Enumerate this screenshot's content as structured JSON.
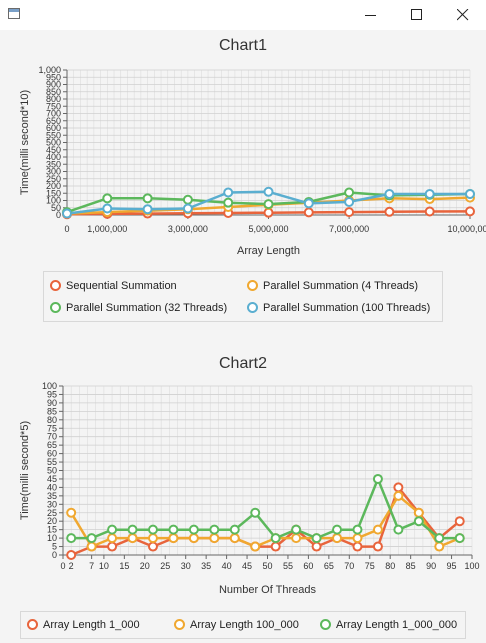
{
  "window": {
    "title": ""
  },
  "chart1": {
    "title": "Chart1",
    "ylabel": "Time(milli second*10)",
    "xlabel": "Array Length",
    "yticks": [
      "0",
      "50",
      "100",
      "150",
      "200",
      "250",
      "300",
      "350",
      "400",
      "450",
      "500",
      "550",
      "600",
      "650",
      "700",
      "750",
      "800",
      "850",
      "900",
      "950",
      "1,000"
    ],
    "xticks": [
      "0",
      "1,000,000",
      "3,000,000",
      "5,000,000",
      "7,000,000",
      "10,000,000"
    ],
    "legend": [
      "Sequential Summation",
      "Parallel Summation (4 Threads)",
      "Parallel Summation (32 Threads)",
      "Parallel Summation (100 Threads)"
    ]
  },
  "chart2": {
    "title": "Chart2",
    "ylabel": "Time(milli second*5)",
    "xlabel": "Number Of Threads",
    "yticks": [
      "0",
      "5",
      "10",
      "15",
      "20",
      "25",
      "30",
      "35",
      "40",
      "45",
      "50",
      "55",
      "60",
      "65",
      "70",
      "75",
      "80",
      "85",
      "90",
      "95",
      "100"
    ],
    "xticks": [
      "0",
      "2",
      "7",
      "10",
      "15",
      "20",
      "25",
      "30",
      "35",
      "40",
      "45",
      "50",
      "55",
      "60",
      "65",
      "70",
      "75",
      "80",
      "85",
      "90",
      "95",
      "100"
    ],
    "legend": [
      "Array Length 1_000",
      "Array Length 100_000",
      "Array Length 1_000_000"
    ]
  },
  "colors": {
    "orange": "#e8643c",
    "yellow": "#f0a830",
    "green": "#5cb85c",
    "blue": "#5aaed0"
  },
  "chart_data": [
    {
      "type": "line",
      "title": "Chart1",
      "xlabel": "Array Length",
      "ylabel": "Time(milli second*10)",
      "xlim": [
        0,
        10000000
      ],
      "ylim": [
        0,
        1000
      ],
      "grid": true,
      "legend_position": "bottom",
      "x": [
        0,
        1000000,
        2000000,
        3000000,
        4000000,
        5000000,
        6000000,
        7000000,
        8000000,
        9000000,
        10000000
      ],
      "series": [
        {
          "name": "Sequential Summation",
          "color": "#e8643c",
          "values": [
            5,
            8,
            10,
            12,
            14,
            16,
            18,
            20,
            22,
            24,
            25
          ]
        },
        {
          "name": "Parallel Summation (4 Threads)",
          "color": "#f0a830",
          "values": [
            10,
            20,
            30,
            40,
            55,
            70,
            85,
            100,
            115,
            110,
            120
          ]
        },
        {
          "name": "Parallel Summation (32 Threads)",
          "color": "#5cb85c",
          "values": [
            20,
            115,
            115,
            105,
            85,
            75,
            90,
            155,
            135,
            140,
            145
          ]
        },
        {
          "name": "Parallel Summation (100 Threads)",
          "color": "#5aaed0",
          "values": [
            10,
            45,
            40,
            45,
            155,
            160,
            80,
            90,
            145,
            145,
            145
          ]
        }
      ]
    },
    {
      "type": "line",
      "title": "Chart2",
      "xlabel": "Number Of Threads",
      "ylabel": "Time(milli second*5)",
      "xlim": [
        0,
        100
      ],
      "ylim": [
        0,
        100
      ],
      "grid": true,
      "legend_position": "bottom",
      "x": [
        2,
        7,
        12,
        17,
        22,
        27,
        32,
        37,
        42,
        47,
        52,
        57,
        62,
        67,
        72,
        77,
        82,
        87,
        92,
        97
      ],
      "series": [
        {
          "name": "Array Length 1_000",
          "color": "#e8643c",
          "values": [
            0,
            5,
            5,
            10,
            5,
            10,
            10,
            10,
            10,
            5,
            5,
            15,
            5,
            10,
            5,
            5,
            40,
            25,
            10,
            20
          ]
        },
        {
          "name": "Array Length 100_000",
          "color": "#f0a830",
          "values": [
            25,
            5,
            10,
            10,
            10,
            10,
            10,
            10,
            10,
            5,
            10,
            10,
            10,
            10,
            10,
            15,
            35,
            25,
            5,
            10
          ]
        },
        {
          "name": "Array Length 1_000_000",
          "color": "#5cb85c",
          "values": [
            10,
            10,
            15,
            15,
            15,
            15,
            15,
            15,
            15,
            25,
            10,
            15,
            10,
            15,
            15,
            45,
            15,
            20,
            10,
            10
          ]
        }
      ]
    }
  ]
}
